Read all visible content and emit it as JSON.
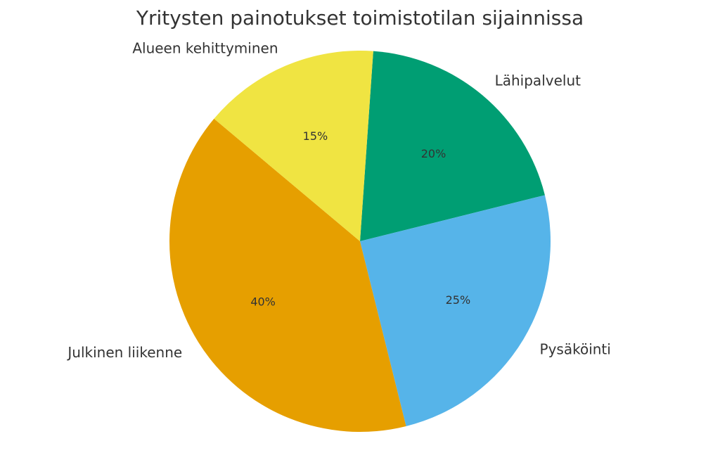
{
  "chart_data": {
    "type": "pie",
    "title": "Yritysten painotukset toimistotilan sijainnissa",
    "labels": [
      "Lähipalvelut",
      "Pysäköinti",
      "Julkinen liikenne",
      "Alueen kehittyminen"
    ],
    "values": [
      20,
      25,
      40,
      15
    ],
    "percent_labels": [
      "20%",
      "25%",
      "40%",
      "15%"
    ],
    "colors": [
      "#009E73",
      "#56B4E9",
      "#E69F00",
      "#F0E442"
    ],
    "start_angle_deg": 86.0,
    "direction": "clockwise"
  }
}
